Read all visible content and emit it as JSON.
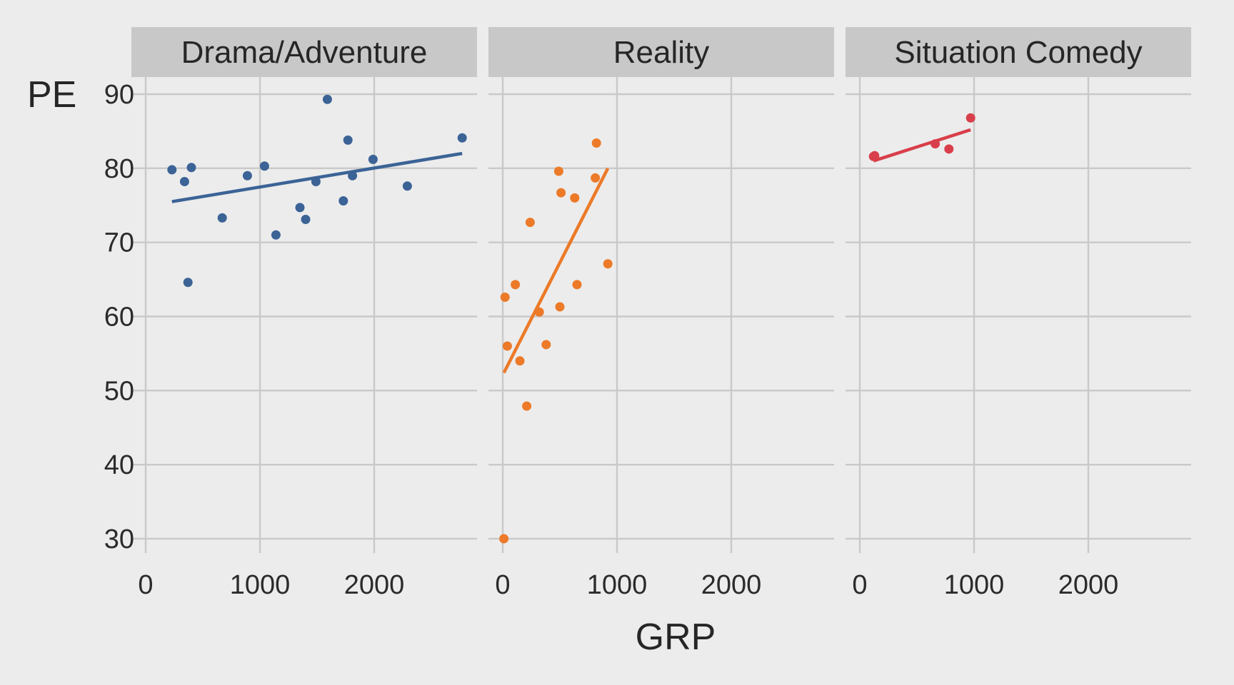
{
  "chart_data": {
    "type": "scatter",
    "xlabel": "GRP",
    "ylabel": "PE",
    "xlim": [
      0,
      2800
    ],
    "ylim": [
      28,
      90
    ],
    "x_ticks": [
      0,
      1000,
      2000
    ],
    "y_ticks": [
      30,
      40,
      50,
      60,
      70,
      80,
      90
    ],
    "grid": true,
    "legend": "none",
    "panels": [
      {
        "name": "Drama/Adventure",
        "color": "#3b6396",
        "points": [
          [
            230,
            79.8
          ],
          [
            340,
            78.2
          ],
          [
            370,
            64.6
          ],
          [
            400,
            80.1
          ],
          [
            670,
            73.3
          ],
          [
            890,
            79.0
          ],
          [
            1040,
            80.3
          ],
          [
            1140,
            71.0
          ],
          [
            1350,
            74.7
          ],
          [
            1400,
            73.1
          ],
          [
            1490,
            78.2
          ],
          [
            1590,
            89.3
          ],
          [
            1730,
            75.6
          ],
          [
            1770,
            83.8
          ],
          [
            1810,
            79.0
          ],
          [
            1990,
            81.2
          ],
          [
            2290,
            77.6
          ],
          [
            2770,
            84.1
          ]
        ],
        "fit": [
          [
            230,
            75.5
          ],
          [
            2770,
            82.0
          ]
        ]
      },
      {
        "name": "Reality",
        "color": "#ec7a28",
        "points": [
          [
            10,
            30.0
          ],
          [
            20,
            62.6
          ],
          [
            40,
            56.0
          ],
          [
            110,
            64.3
          ],
          [
            150,
            54.0
          ],
          [
            210,
            47.9
          ],
          [
            240,
            72.7
          ],
          [
            320,
            60.6
          ],
          [
            380,
            56.2
          ],
          [
            490,
            79.6
          ],
          [
            500,
            61.3
          ],
          [
            510,
            76.7
          ],
          [
            630,
            76.0
          ],
          [
            650,
            64.3
          ],
          [
            810,
            78.7
          ],
          [
            820,
            83.4
          ],
          [
            920,
            67.1
          ]
        ],
        "fit": [
          [
            10,
            52.4
          ],
          [
            920,
            80.0
          ]
        ]
      },
      {
        "name": "Situation Comedy",
        "color": "#d83f4a",
        "points": [
          [
            120,
            81.6
          ],
          [
            130,
            81.7
          ],
          [
            660,
            83.3
          ],
          [
            780,
            82.6
          ],
          [
            970,
            86.8
          ]
        ],
        "fit": [
          [
            120,
            81.0
          ],
          [
            970,
            85.2
          ]
        ]
      }
    ]
  }
}
